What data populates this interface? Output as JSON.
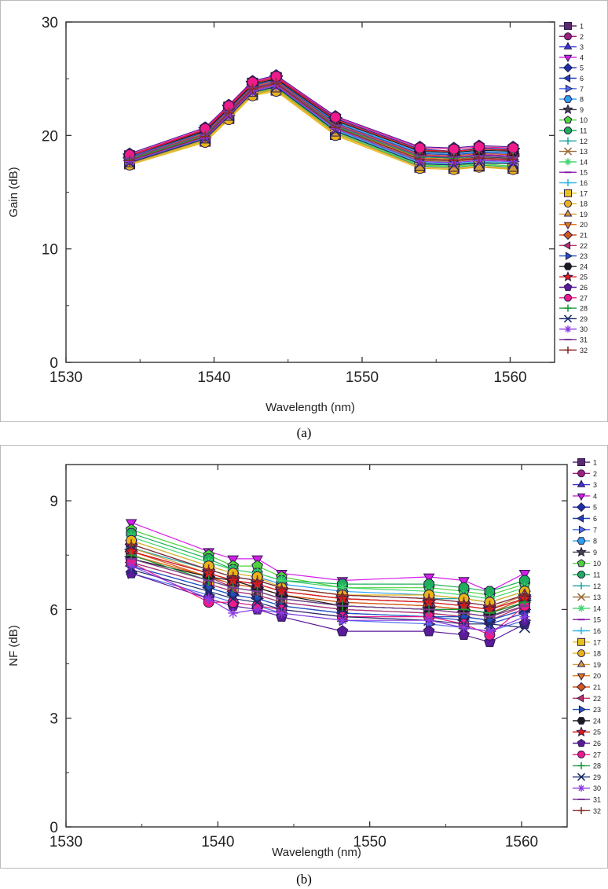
{
  "captions": [
    "(a)",
    "(b)"
  ],
  "chart_data": [
    {
      "type": "line",
      "xlabel": "Wavelength (nm)",
      "ylabel": "Gain (dB)",
      "xlim": [
        1530,
        1563
      ],
      "ylim": [
        0,
        30
      ],
      "xticks": [
        1530,
        1540,
        1550,
        1560
      ],
      "yticks": [
        0,
        10,
        20,
        30
      ],
      "legend_position": "right",
      "x": [
        1534.3,
        1539.4,
        1541,
        1542.6,
        1544.2,
        1548.2,
        1553.9,
        1556.2,
        1557.9,
        1560.2
      ],
      "series": [
        {
          "name": "1",
          "values": [
            18.2,
            20.4,
            22.5,
            24.6,
            25.1,
            21.4,
            18.7,
            18.6,
            18.8,
            18.7
          ]
        },
        {
          "name": "2",
          "values": [
            18.1,
            20.2,
            22.3,
            24.4,
            24.9,
            21.1,
            18.4,
            18.3,
            18.5,
            18.4
          ]
        },
        {
          "name": "3",
          "values": [
            17.9,
            20.0,
            22.1,
            24.2,
            24.7,
            20.9,
            18.2,
            18.0,
            18.2,
            18.1
          ]
        },
        {
          "name": "4",
          "values": [
            18.0,
            20.1,
            22.2,
            24.3,
            24.8,
            21.0,
            18.3,
            18.1,
            18.3,
            18.2
          ]
        },
        {
          "name": "5",
          "values": [
            18.3,
            20.5,
            22.6,
            24.7,
            25.2,
            21.5,
            18.8,
            18.6,
            18.9,
            18.8
          ]
        },
        {
          "name": "6",
          "values": [
            17.8,
            19.9,
            21.9,
            24.0,
            24.5,
            20.7,
            17.9,
            17.8,
            18.0,
            17.9
          ]
        },
        {
          "name": "7",
          "values": [
            17.7,
            19.8,
            21.8,
            23.9,
            24.4,
            20.5,
            17.7,
            17.6,
            17.8,
            17.7
          ]
        },
        {
          "name": "8",
          "values": [
            18.1,
            20.3,
            22.4,
            24.5,
            25.0,
            21.2,
            18.5,
            18.4,
            18.6,
            18.5
          ]
        },
        {
          "name": "9",
          "values": [
            17.9,
            20.0,
            22.0,
            24.1,
            24.6,
            20.8,
            18.0,
            17.9,
            18.1,
            18.0
          ]
        },
        {
          "name": "10",
          "values": [
            17.6,
            19.6,
            21.6,
            23.7,
            24.2,
            20.3,
            17.4,
            17.3,
            17.5,
            17.3
          ]
        },
        {
          "name": "11",
          "values": [
            17.5,
            19.5,
            21.5,
            23.6,
            24.1,
            20.2,
            17.3,
            17.2,
            17.4,
            17.2
          ]
        },
        {
          "name": "12",
          "values": [
            17.7,
            19.7,
            21.7,
            23.8,
            24.3,
            20.4,
            17.5,
            17.4,
            17.6,
            17.5
          ]
        },
        {
          "name": "13",
          "values": [
            17.8,
            19.9,
            21.9,
            24.0,
            24.5,
            20.6,
            17.8,
            17.7,
            17.9,
            17.8
          ]
        },
        {
          "name": "14",
          "values": [
            17.6,
            19.7,
            21.7,
            23.8,
            24.3,
            20.4,
            17.6,
            17.5,
            17.6,
            17.5
          ]
        },
        {
          "name": "15",
          "values": [
            18.0,
            20.1,
            22.2,
            24.3,
            24.8,
            21.0,
            18.2,
            18.1,
            18.3,
            18.2
          ]
        },
        {
          "name": "16",
          "values": [
            17.7,
            19.8,
            21.8,
            23.9,
            24.4,
            20.5,
            17.6,
            17.5,
            17.7,
            17.6
          ]
        },
        {
          "name": "17",
          "values": [
            17.5,
            19.5,
            21.5,
            23.6,
            24.0,
            20.1,
            17.2,
            17.1,
            17.3,
            17.1
          ]
        },
        {
          "name": "18",
          "values": [
            17.4,
            19.4,
            21.4,
            23.5,
            23.9,
            20.0,
            17.1,
            17.0,
            17.2,
            17.0
          ]
        },
        {
          "name": "19",
          "values": [
            17.5,
            19.6,
            21.6,
            23.7,
            24.1,
            20.2,
            17.2,
            17.1,
            17.2,
            17.1
          ]
        },
        {
          "name": "20",
          "values": [
            17.9,
            20.0,
            22.0,
            24.1,
            24.6,
            20.8,
            18.0,
            17.9,
            18.0,
            17.9
          ]
        },
        {
          "name": "21",
          "values": [
            18.0,
            20.2,
            22.2,
            24.3,
            24.8,
            21.0,
            18.3,
            18.2,
            18.4,
            18.3
          ]
        },
        {
          "name": "22",
          "values": [
            17.8,
            19.9,
            21.9,
            24.0,
            24.5,
            20.7,
            17.9,
            17.8,
            17.9,
            17.8
          ]
        },
        {
          "name": "23",
          "values": [
            18.1,
            20.3,
            22.3,
            24.4,
            24.9,
            21.1,
            18.4,
            18.3,
            18.5,
            18.4
          ]
        },
        {
          "name": "24",
          "values": [
            18.2,
            20.4,
            22.4,
            24.5,
            25.0,
            21.3,
            18.6,
            18.5,
            18.7,
            18.6
          ]
        },
        {
          "name": "25",
          "values": [
            18.2,
            20.5,
            22.5,
            24.6,
            25.1,
            21.4,
            18.7,
            18.6,
            18.8,
            18.7
          ]
        },
        {
          "name": "26",
          "values": [
            18.4,
            20.7,
            22.7,
            24.8,
            25.3,
            21.7,
            19.0,
            18.9,
            19.1,
            19.0
          ]
        },
        {
          "name": "27",
          "values": [
            18.3,
            20.6,
            22.6,
            24.7,
            25.2,
            21.6,
            18.9,
            18.8,
            19.0,
            18.9
          ]
        },
        {
          "name": "28",
          "values": [
            17.9,
            20.0,
            22.0,
            24.1,
            24.6,
            20.8,
            18.1,
            18.0,
            18.2,
            18.1
          ]
        },
        {
          "name": "29",
          "values": [
            17.6,
            19.7,
            21.7,
            23.8,
            24.3,
            20.4,
            17.5,
            17.4,
            17.6,
            17.5
          ]
        },
        {
          "name": "30",
          "values": [
            17.7,
            19.8,
            21.8,
            23.9,
            24.4,
            20.6,
            17.7,
            17.6,
            17.8,
            17.7
          ]
        },
        {
          "name": "31",
          "values": [
            18.0,
            20.1,
            22.1,
            24.2,
            24.7,
            20.9,
            18.2,
            18.1,
            18.2,
            18.1
          ]
        },
        {
          "name": "32",
          "values": [
            17.8,
            19.9,
            22.0,
            24.1,
            24.6,
            20.7,
            17.9,
            17.8,
            18.0,
            17.9
          ]
        }
      ]
    },
    {
      "type": "line",
      "xlabel": "Wavelength (nm)",
      "ylabel": "NF (dB)",
      "xlim": [
        1530,
        1563
      ],
      "ylim": [
        0,
        10
      ],
      "xticks": [
        1530,
        1540,
        1550,
        1560
      ],
      "yticks": [
        0,
        3,
        6,
        9
      ],
      "legend_position": "right",
      "x": [
        1534.3,
        1539.4,
        1541,
        1542.6,
        1544.2,
        1548.2,
        1553.9,
        1556.2,
        1557.9,
        1560.2
      ],
      "series": [
        {
          "name": "1",
          "values": [
            7.6,
            7.0,
            6.8,
            6.7,
            6.5,
            6.3,
            6.2,
            6.1,
            6.0,
            6.3
          ]
        },
        {
          "name": "2",
          "values": [
            7.5,
            6.9,
            6.6,
            6.5,
            6.3,
            6.1,
            6.0,
            5.9,
            5.8,
            6.1
          ]
        },
        {
          "name": "3",
          "values": [
            7.3,
            6.7,
            6.5,
            6.4,
            6.2,
            6.0,
            5.9,
            5.8,
            5.7,
            6.0
          ]
        },
        {
          "name": "4",
          "values": [
            8.4,
            7.6,
            7.4,
            7.4,
            7.0,
            6.8,
            6.9,
            6.8,
            6.5,
            7.0
          ]
        },
        {
          "name": "5",
          "values": [
            7.8,
            7.1,
            6.9,
            6.8,
            6.6,
            6.4,
            6.3,
            6.2,
            6.1,
            6.4
          ]
        },
        {
          "name": "6",
          "values": [
            7.2,
            6.6,
            6.4,
            6.3,
            6.1,
            5.9,
            5.8,
            5.7,
            5.6,
            5.9
          ]
        },
        {
          "name": "7",
          "values": [
            7.0,
            6.4,
            6.2,
            6.1,
            5.9,
            5.7,
            5.6,
            5.5,
            5.4,
            5.7
          ]
        },
        {
          "name": "8",
          "values": [
            7.9,
            7.2,
            7.0,
            6.9,
            6.7,
            6.5,
            6.4,
            6.3,
            6.2,
            6.5
          ]
        },
        {
          "name": "9",
          "values": [
            7.4,
            6.8,
            6.6,
            6.5,
            6.3,
            6.1,
            6.0,
            5.9,
            5.8,
            6.2
          ]
        },
        {
          "name": "10",
          "values": [
            8.2,
            7.5,
            7.2,
            7.2,
            6.9,
            6.6,
            6.6,
            6.5,
            6.4,
            6.7
          ]
        },
        {
          "name": "11",
          "values": [
            8.1,
            7.4,
            7.1,
            7.0,
            6.8,
            6.7,
            6.7,
            6.6,
            6.5,
            6.8
          ]
        },
        {
          "name": "12",
          "values": [
            7.7,
            7.1,
            6.9,
            6.8,
            6.6,
            6.4,
            6.3,
            6.3,
            6.2,
            6.5
          ]
        },
        {
          "name": "13",
          "values": [
            7.5,
            6.9,
            6.7,
            6.6,
            6.4,
            6.2,
            6.1,
            6.0,
            5.9,
            6.3
          ]
        },
        {
          "name": "14",
          "values": [
            8.0,
            7.3,
            7.1,
            7.0,
            6.8,
            6.6,
            6.5,
            6.4,
            6.3,
            6.6
          ]
        },
        {
          "name": "15",
          "values": [
            7.6,
            7.0,
            6.8,
            6.7,
            6.5,
            6.3,
            6.2,
            6.1,
            6.0,
            6.4
          ]
        },
        {
          "name": "16",
          "values": [
            7.3,
            6.7,
            6.5,
            6.4,
            6.2,
            6.0,
            5.9,
            5.8,
            5.7,
            6.0
          ]
        },
        {
          "name": "17",
          "values": [
            7.4,
            6.8,
            6.6,
            6.5,
            6.3,
            6.1,
            6.0,
            5.9,
            5.8,
            6.1
          ]
        },
        {
          "name": "18",
          "values": [
            7.9,
            7.2,
            7.0,
            6.9,
            6.6,
            6.4,
            6.4,
            6.3,
            6.2,
            6.5
          ]
        },
        {
          "name": "19",
          "values": [
            7.7,
            7.0,
            6.8,
            6.7,
            6.5,
            6.3,
            6.2,
            6.1,
            6.0,
            6.4
          ]
        },
        {
          "name": "20",
          "values": [
            7.5,
            6.9,
            6.7,
            6.6,
            6.4,
            6.2,
            6.1,
            6.0,
            5.9,
            6.2
          ]
        },
        {
          "name": "21",
          "values": [
            7.6,
            6.9,
            6.7,
            6.6,
            6.4,
            6.2,
            6.1,
            6.0,
            5.9,
            6.3
          ]
        },
        {
          "name": "22",
          "values": [
            7.3,
            6.7,
            6.5,
            6.4,
            6.2,
            6.0,
            5.9,
            5.8,
            5.7,
            6.1
          ]
        },
        {
          "name": "23",
          "values": [
            7.2,
            6.6,
            6.4,
            6.3,
            6.1,
            5.9,
            5.8,
            5.8,
            5.7,
            6.0
          ]
        },
        {
          "name": "24",
          "values": [
            7.4,
            6.9,
            6.8,
            6.6,
            6.4,
            6.1,
            6.0,
            6.0,
            5.9,
            6.2
          ]
        },
        {
          "name": "25",
          "values": [
            7.6,
            7.0,
            6.8,
            6.7,
            6.5,
            6.3,
            6.2,
            6.1,
            6.0,
            6.3
          ]
        },
        {
          "name": "26",
          "values": [
            7.0,
            6.3,
            6.1,
            6.0,
            5.8,
            5.4,
            5.4,
            5.3,
            5.1,
            5.6
          ]
        },
        {
          "name": "27",
          "values": [
            7.3,
            6.2,
            6.2,
            6.1,
            6.0,
            5.8,
            5.8,
            5.6,
            5.3,
            6.1
          ]
        },
        {
          "name": "28",
          "values": [
            7.5,
            6.8,
            6.6,
            6.5,
            6.3,
            6.1,
            6.0,
            6.0,
            5.9,
            6.2
          ]
        },
        {
          "name": "29",
          "values": [
            7.1,
            6.5,
            6.3,
            6.2,
            6.0,
            5.8,
            5.7,
            5.6,
            5.6,
            5.5
          ]
        },
        {
          "name": "30",
          "values": [
            7.2,
            6.3,
            5.9,
            6.0,
            5.9,
            5.7,
            5.7,
            5.5,
            5.4,
            5.8
          ]
        },
        {
          "name": "31",
          "values": [
            7.4,
            6.8,
            6.6,
            6.5,
            6.3,
            6.1,
            6.0,
            5.9,
            5.8,
            6.1
          ]
        },
        {
          "name": "32",
          "values": [
            7.8,
            7.1,
            6.9,
            6.8,
            6.6,
            6.4,
            6.3,
            6.2,
            6.1,
            6.4
          ]
        }
      ]
    }
  ],
  "series_colors": [
    "#5b2a6e",
    "#9e1f7a",
    "#3b32d6",
    "#d41ee8",
    "#1b2fa8",
    "#1e3fb8",
    "#4a6cf0",
    "#2ea0f0",
    "#444444",
    "#4ed43a",
    "#1fae5a",
    "#24a3a6",
    "#9a6b3a",
    "#3ed46e",
    "#8a1aa8",
    "#36b8e0",
    "#e8c21a",
    "#e8b41a",
    "#d49a3a",
    "#e8781a",
    "#d4581a",
    "#c0306a",
    "#2050c0",
    "#1a1a1a",
    "#e01a1a",
    "#5a1a9a",
    "#f01a8a",
    "#1a9a3a",
    "#1a2a6a",
    "#8a3ae0",
    "#7a3a9a",
    "#8a2a2a"
  ],
  "series_markers": [
    "square",
    "circle",
    "triangle-up",
    "triangle-down",
    "diamond",
    "triangle-left",
    "triangle-right",
    "hexagon",
    "star",
    "pentagon",
    "octagon",
    "plus",
    "x",
    "asterisk",
    "dash",
    "plus",
    "square",
    "circle",
    "triangle-up",
    "triangle-down",
    "diamond",
    "triangle-left",
    "triangle-right",
    "hexagon",
    "star",
    "pentagon",
    "circle",
    "plus",
    "x",
    "asterisk",
    "dash",
    "plus"
  ]
}
